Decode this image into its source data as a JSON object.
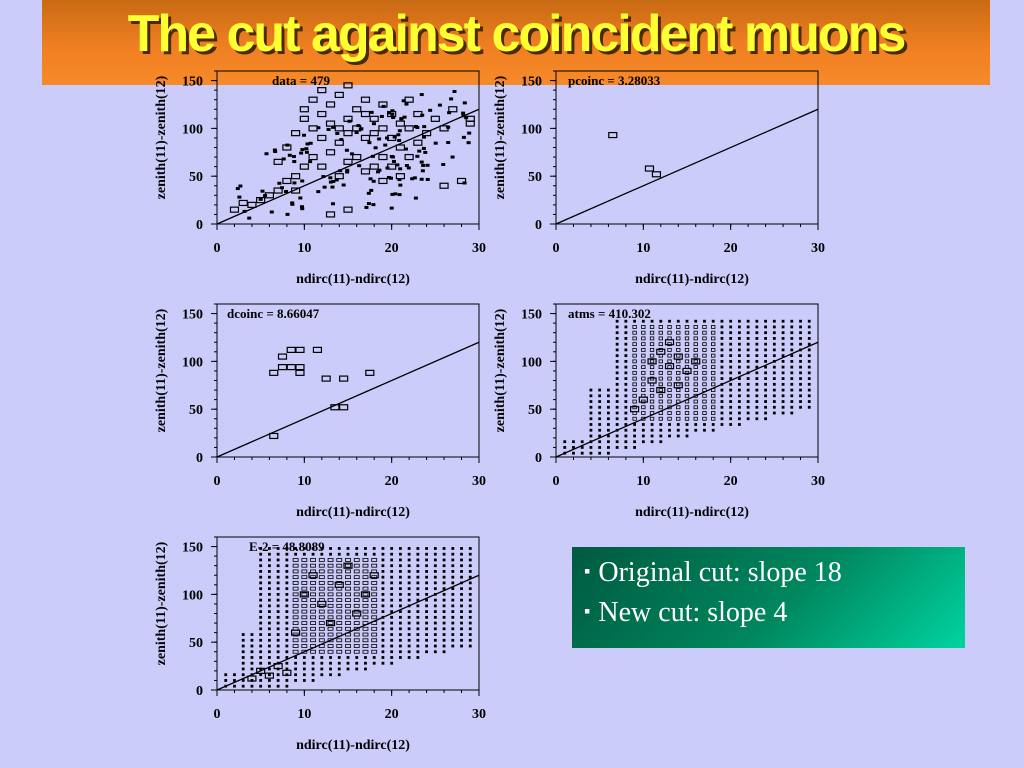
{
  "title": "The cut against coincident muons",
  "notes": [
    {
      "bullet": "▪",
      "text": "Original cut: slope 18"
    },
    {
      "bullet": "▪",
      "text": "New cut: slope 4"
    }
  ],
  "colors": {
    "background": "#ccccfb",
    "title_text": "#ffff33",
    "title_bar": "#f07f22",
    "note_box": "#00875e"
  },
  "chart_data": [
    {
      "type": "scatter",
      "label": "data = 479",
      "xlabel": "ndirc(11)-ndirc(12)",
      "ylabel": "zenith(11)-zenith(12)",
      "xlim": [
        0,
        30
      ],
      "ylim": [
        0,
        160
      ],
      "xticks": [
        "0",
        "10",
        "20",
        "30"
      ],
      "yticks": [
        "0",
        "50",
        "100",
        "150"
      ],
      "cut_line": {
        "x": [
          0,
          30
        ],
        "y": [
          0,
          120
        ]
      },
      "density": "medium",
      "points": [
        [
          2,
          15
        ],
        [
          3,
          22
        ],
        [
          4,
          20
        ],
        [
          5,
          25
        ],
        [
          6,
          30
        ],
        [
          7,
          35
        ],
        [
          7,
          65
        ],
        [
          8,
          45
        ],
        [
          8,
          80
        ],
        [
          9,
          50
        ],
        [
          9,
          95
        ],
        [
          10,
          60
        ],
        [
          10,
          110
        ],
        [
          10,
          120
        ],
        [
          11,
          70
        ],
        [
          11,
          100
        ],
        [
          11,
          130
        ],
        [
          12,
          60
        ],
        [
          12,
          90
        ],
        [
          12,
          115
        ],
        [
          12,
          140
        ],
        [
          13,
          75
        ],
        [
          13,
          105
        ],
        [
          13,
          125
        ],
        [
          14,
          50
        ],
        [
          14,
          85
        ],
        [
          14,
          100
        ],
        [
          14,
          135
        ],
        [
          15,
          65
        ],
        [
          15,
          95
        ],
        [
          15,
          110
        ],
        [
          15,
          145
        ],
        [
          16,
          70
        ],
        [
          16,
          100
        ],
        [
          16,
          120
        ],
        [
          17,
          55
        ],
        [
          17,
          90
        ],
        [
          17,
          115
        ],
        [
          17,
          130
        ],
        [
          18,
          60
        ],
        [
          18,
          95
        ],
        [
          18,
          110
        ],
        [
          19,
          70
        ],
        [
          19,
          100
        ],
        [
          19,
          125
        ],
        [
          20,
          60
        ],
        [
          20,
          90
        ],
        [
          20,
          115
        ],
        [
          21,
          80
        ],
        [
          21,
          105
        ],
        [
          22,
          70
        ],
        [
          22,
          100
        ],
        [
          22,
          130
        ],
        [
          23,
          85
        ],
        [
          23,
          115
        ],
        [
          24,
          95
        ],
        [
          25,
          110
        ],
        [
          26,
          100
        ],
        [
          26,
          40
        ],
        [
          27,
          120
        ],
        [
          28,
          45
        ],
        [
          29,
          110
        ],
        [
          29,
          105
        ],
        [
          19,
          45
        ],
        [
          21,
          50
        ],
        [
          9,
          35
        ],
        [
          13,
          10
        ],
        [
          15,
          15
        ]
      ]
    },
    {
      "type": "scatter",
      "label": "pcoinc = 3.28033",
      "xlabel": "ndirc(11)-ndirc(12)",
      "ylabel": "zenith(11)-zenith(12)",
      "xlim": [
        0,
        30
      ],
      "ylim": [
        0,
        160
      ],
      "xticks": [
        "0",
        "10",
        "20",
        "30"
      ],
      "yticks": [
        "0",
        "50",
        "100",
        "150"
      ],
      "cut_line": {
        "x": [
          0,
          30
        ],
        "y": [
          0,
          120
        ]
      },
      "density": "none",
      "points": [
        [
          6.5,
          93
        ],
        [
          10.7,
          58
        ],
        [
          11.5,
          52
        ]
      ]
    },
    {
      "type": "scatter",
      "label": "dcoinc = 8.66047",
      "xlabel": "ndirc(11)-ndirc(12)",
      "ylabel": "zenith(11)-zenith(12)",
      "xlim": [
        0,
        30
      ],
      "ylim": [
        0,
        160
      ],
      "xticks": [
        "0",
        "10",
        "20",
        "30"
      ],
      "yticks": [
        "0",
        "50",
        "100",
        "150"
      ],
      "cut_line": {
        "x": [
          0,
          30
        ],
        "y": [
          0,
          120
        ]
      },
      "density": "none",
      "points": [
        [
          6.5,
          22
        ],
        [
          6.5,
          88
        ],
        [
          7.5,
          94
        ],
        [
          7.5,
          105
        ],
        [
          8.5,
          94
        ],
        [
          8.5,
          112
        ],
        [
          9.5,
          88
        ],
        [
          9.5,
          94
        ],
        [
          9.5,
          112
        ],
        [
          11.5,
          112
        ],
        [
          12.5,
          82
        ],
        [
          13.5,
          52
        ],
        [
          14.5,
          52
        ],
        [
          14.5,
          82
        ],
        [
          17.5,
          88
        ]
      ]
    },
    {
      "type": "scatter",
      "label": "atms = 410.302",
      "xlabel": "ndirc(11)-ndirc(12)",
      "ylabel": "zenith(11)-zenith(12)",
      "xlim": [
        0,
        30
      ],
      "ylim": [
        0,
        160
      ],
      "xticks": [
        "0",
        "10",
        "20",
        "30"
      ],
      "yticks": [
        "0",
        "50",
        "100",
        "150"
      ],
      "cut_line": {
        "x": [
          0,
          30
        ],
        "y": [
          0,
          120
        ]
      },
      "density": "high",
      "points": [
        [
          11,
          100
        ],
        [
          12,
          110
        ],
        [
          13,
          95
        ],
        [
          14,
          105
        ],
        [
          15,
          90
        ],
        [
          11,
          80
        ],
        [
          12,
          70
        ],
        [
          13,
          120
        ],
        [
          14,
          75
        ],
        [
          16,
          100
        ],
        [
          10,
          60
        ],
        [
          9,
          50
        ]
      ]
    },
    {
      "type": "scatter",
      "label": "E-2 = 48.8089",
      "xlabel": "ndirc(11)-ndirc(12)",
      "ylabel": "zenith(11)-zenith(12)",
      "xlim": [
        0,
        30
      ],
      "ylim": [
        0,
        160
      ],
      "xticks": [
        "0",
        "10",
        "20",
        "30"
      ],
      "yticks": [
        "0",
        "50",
        "100",
        "150"
      ],
      "cut_line": {
        "x": [
          0,
          30
        ],
        "y": [
          0,
          120
        ]
      },
      "density": "very high",
      "points": [
        [
          10,
          100
        ],
        [
          12,
          90
        ],
        [
          14,
          110
        ],
        [
          16,
          80
        ],
        [
          11,
          120
        ],
        [
          13,
          70
        ],
        [
          15,
          130
        ],
        [
          17,
          100
        ],
        [
          9,
          60
        ],
        [
          18,
          120
        ],
        [
          5,
          20
        ],
        [
          6,
          15
        ],
        [
          4,
          12
        ],
        [
          7,
          25
        ],
        [
          8,
          18
        ]
      ]
    }
  ]
}
